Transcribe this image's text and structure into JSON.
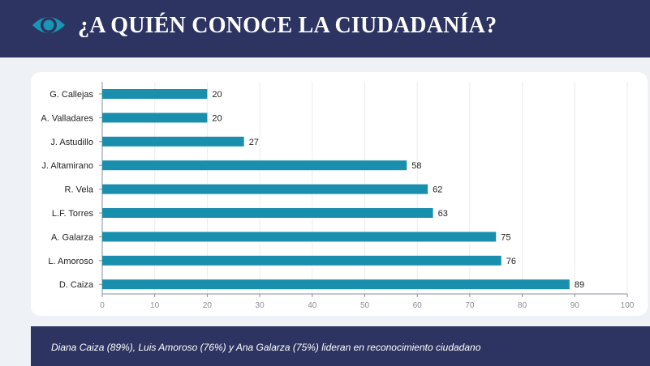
{
  "header": {
    "title": "¿A QUIÉN CONOCE LA CIUDADANÍA?",
    "icon": "eye-icon",
    "background": "#2d3461",
    "icon_color": "#1a95b5"
  },
  "chart_data": {
    "type": "bar",
    "orientation": "horizontal",
    "categories": [
      "G. Callejas",
      "A. Valladares",
      "J. Astudillo",
      "J. Altamirano",
      "R. Vela",
      "L.F. Torres",
      "A. Galarza",
      "L. Amoroso",
      "D. Caiza"
    ],
    "values": [
      20,
      20,
      27,
      58,
      62,
      63,
      75,
      76,
      89
    ],
    "xlim": [
      0,
      100
    ],
    "ticks": [
      0,
      10,
      20,
      30,
      40,
      50,
      60,
      70,
      80,
      90,
      100
    ],
    "bar_color": "#1a8fad",
    "grid": true,
    "title": "",
    "xlabel": "",
    "ylabel": ""
  },
  "footer": {
    "text": "Diana Caiza (89%), Luis Amoroso (76%) y Ana Galarza (75%) lideran en reconocimiento ciudadano"
  }
}
